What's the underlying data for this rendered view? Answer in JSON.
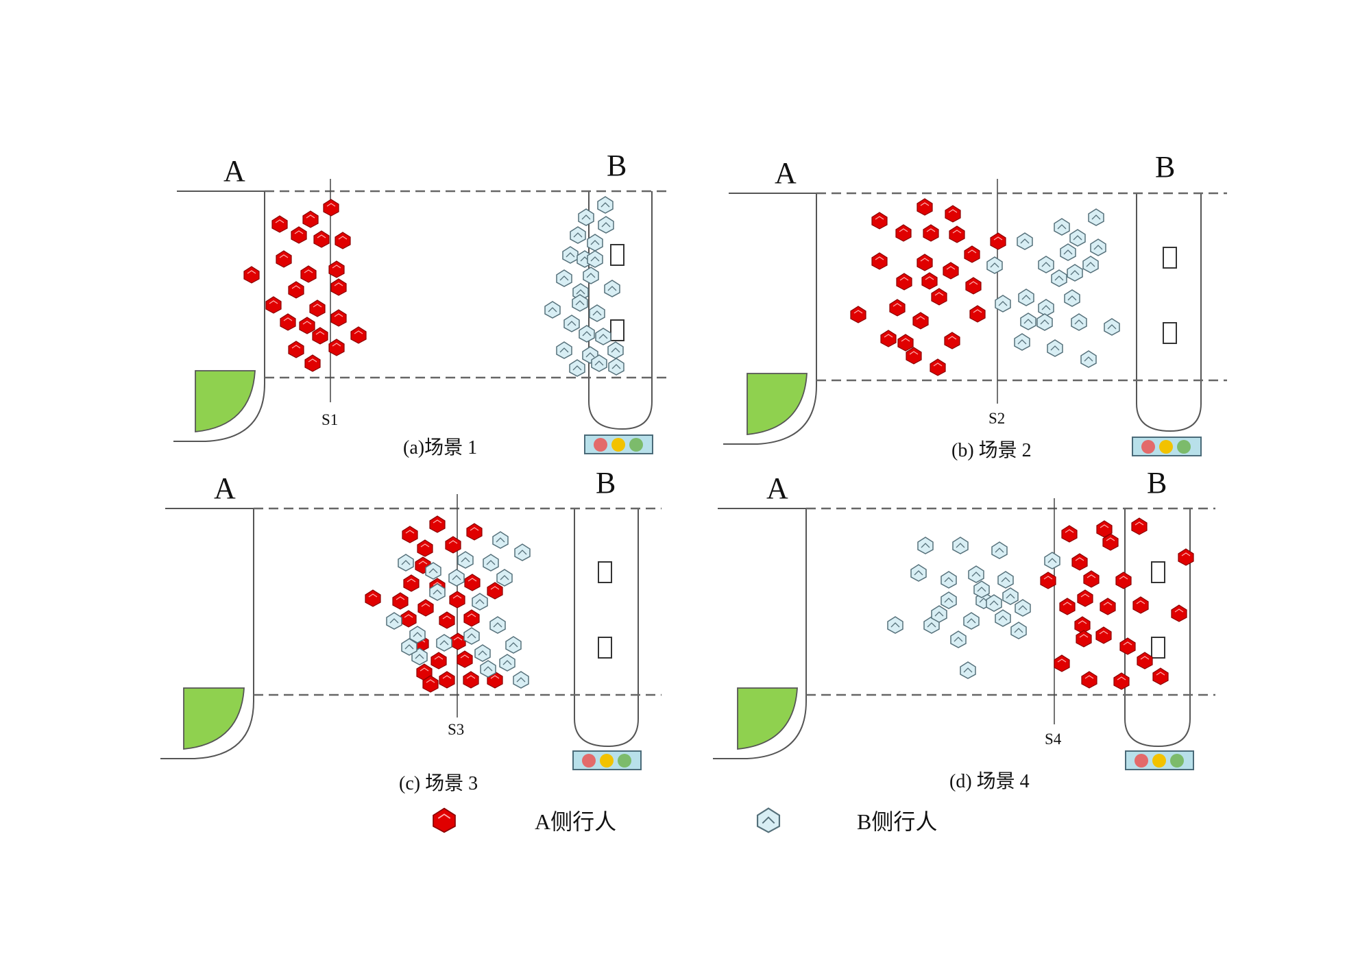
{
  "figure": {
    "panels": [
      {
        "id": "a",
        "label_a": "A",
        "label_b": "B",
        "section_label": "S1",
        "caption": "(a)场景 1",
        "a_count": 22,
        "b_count": 24
      },
      {
        "id": "b",
        "label_a": "A",
        "label_b": "B",
        "section_label": "S2",
        "caption": "(b) 场景 2",
        "a_count": 24,
        "b_count": 22
      },
      {
        "id": "c",
        "label_a": "A",
        "label_b": "B",
        "section_label": "S3",
        "caption": "(c) 场景 3",
        "a_count": 24,
        "b_count": 22
      },
      {
        "id": "d",
        "label_a": "A",
        "label_b": "B",
        "section_label": "S4",
        "caption": "(d) 场景 4",
        "a_count": 24,
        "b_count": 22
      }
    ],
    "traffic_light_colors": [
      "#e36a6a",
      "#f2c200",
      "#7cbb6b"
    ],
    "legend": {
      "a_label": "A侧行人",
      "b_label": "B侧行人"
    }
  }
}
